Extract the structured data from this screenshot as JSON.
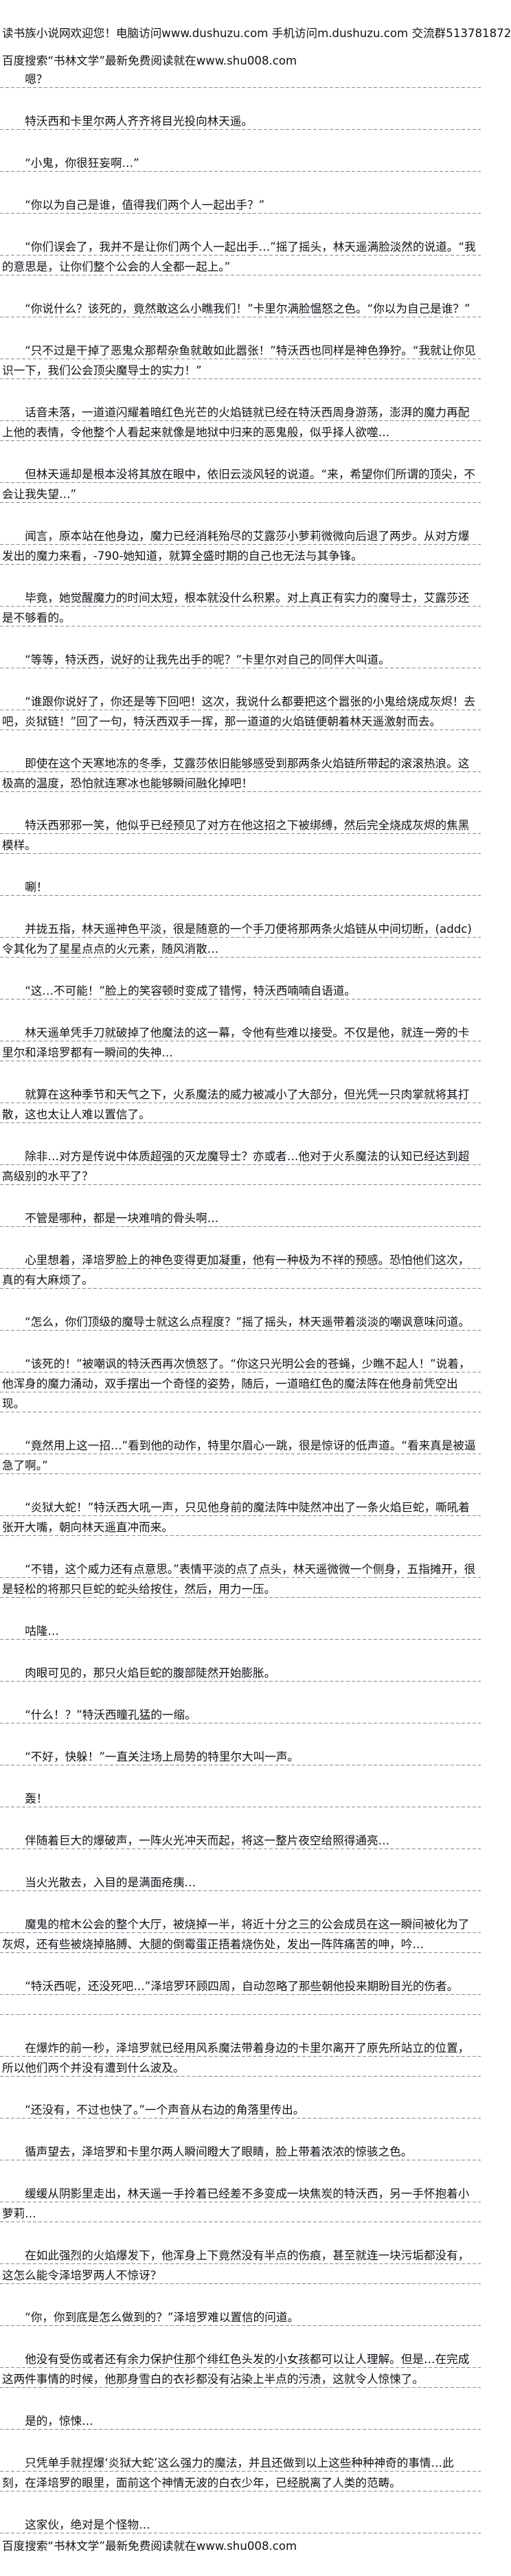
{
  "header": {
    "welcome": "读书族小说网欢迎您！电脑访问www.dushuzu.com 手机访问m.dushuzu.com 交流群513781872",
    "search_promo": "百度搜索“书林文学”最新免费阅读就在www.shu008.com"
  },
  "paragraphs": [
    "嗯？",
    "特沃西和卡里尔两人齐齐将目光投向林天遥。",
    "“小鬼，你很狂妄啊…”",
    "“你以为自己是谁，值得我们两个人一起出手？”",
    "“你们误会了，我并不是让你们两个人一起出手…”摇了摇头，林天遥满脸淡然的说道。“我的意思是，让你们整个公会的人全都一起上。”",
    "“你说什么？该死的，竟然敢这么小瞧我们！”卡里尔满脸愠怒之色。“你以为自己是谁？”",
    "“只不过是干掉了恶鬼众那帮杂鱼就敢如此嚣张！”特沃西也同样是神色狰狞。“我就让你见识一下，我们公会顶尖魔导士的实力！”",
    "话音未落，一道道闪耀着暗红色光芒的火焰链就已经在特沃西周身游荡，澎湃的魔力再配上他的表情，令他整个人看起来就像是地狱中归来的恶鬼般，似乎择人欲噬…",
    "但林天遥却是根本没将其放在眼中，依旧云淡风轻的说道。“来，希望你们所谓的顶尖，不会让我失望…”",
    "闻言，原本站在他身边，魔力已经消耗殆尽的艾露莎小萝莉微微向后退了两步。从对方爆发出的魔力来看，-790-她知道，就算全盛时期的自己也无法与其争锋。",
    "毕竟，她觉醒魔力的时间太短，根本就没什么积累。对上真正有实力的魔导士，艾露莎还是不够看的。",
    "“等等，特沃西，说好的让我先出手的呢？”卡里尔对自己的同伴大叫道。",
    "“谁跟你说好了，你还是等下回吧！这次，我说什么都要把这个嚣张的小鬼给烧成灰烬！去吧，炎狱链！”回了一句，特沃西双手一挥，那一道道的火焰链便朝着林天遥激射而去。",
    "即使在这个天寒地冻的冬季，艾露莎依旧能够感受到那两条火焰链所带起的滚滚热浪。这极高的温度，恐怕就连寒冰也能够瞬间融化掉吧！",
    "特沃西邪邪一笑，他似乎已经预见了对方在他这招之下被绑缚，然后完全烧成灰烬的焦黑模样。",
    "唰！",
    "并拢五指，林天遥神色平淡，很是随意的一个手刀便将那两条火焰链从中间切断，(addc)令其化为了星星点点的火元素，随风消散…",
    "“这…不可能！”脸上的笑容顿时变成了错愕，特沃西喃喃自语道。",
    "林天遥单凭手刀就破掉了他魔法的这一幕，令他有些难以接受。不仅是他，就连一旁的卡里尔和泽培罗都有一瞬间的失神…",
    "就算在这种季节和天气之下，火系魔法的威力被减小了大部分，但光凭一只肉掌就将其打散，这也太让人难以置信了。",
    "除非…对方是传说中体质超强的灭龙魔导士？亦或者…他对于火系魔法的认知已经达到超高级别的水平了？",
    "不管是哪种，都是一块难啃的骨头啊…",
    "心里想着，泽培罗脸上的神色变得更加凝重，他有一种极为不祥的预感。恐怕他们这次，真的有大麻烦了。",
    "“怎么，你们顶级的魔导士就这么点程度？”摇了摇头，林天遥带着淡淡的嘲讽意味问道。",
    "“该死的！”被嘲讽的特沃西再次愤怒了。“你这只光明公会的苍蝇，少瞧不起人！”说着，他浑身的魔力涌动，双手摆出一个奇怪的姿势，随后，一道暗红色的魔法阵在他身前凭空出现。",
    "“竟然用上这一招…”看到他的动作，特里尔眉心一跳，很是惊讶的低声道。“看来真是被逼急了啊。”",
    "“炎狱大蛇！”特沃西大吼一声，只见他身前的魔法阵中陡然冲出了一条火焰巨蛇，嘶吼着张开大嘴，朝向林天遥直冲而来。",
    "“不错，这个威力还有点意思。”表情平淡的点了点头，林天遥微微一个侧身，五指摊开，很是轻松的将那只巨蛇的蛇头给按住，然后，用力一压。",
    "咕隆…",
    "肉眼可见的，那只火焰巨蛇的腹部陡然开始膨胀。",
    "“什么！？”特沃西瞳孔猛的一缩。",
    "“不好，快躲！”一直关注场上局势的特里尔大叫一声。",
    "轰！",
    "伴随着巨大的爆破声，一阵火光冲天而起，将这一整片夜空给照得通亮…",
    "当火光散去，入目的是满面疮痍…",
    "魔鬼的棺木公会的整个大厅，被烧掉一半，将近十分之三的公会成员在这一瞬间被化为了灰烬，还有些被烧掉胳膊、大腿的倒霉蛋正捂着烧伤处，发出一阵阵痛苦的呻，吟…",
    "“特沃西呢，还没死吧…”泽培罗环顾四周，自动忽略了那些朝他投来期盼目光的伤者。",
    "在爆炸的前一秒，泽培罗就已经用风系魔法带着身边的卡里尔离开了原先所站立的位置，所以他们两个并没有遭到什么波及。",
    "“还没有，不过也快了。”一个声音从右边的角落里传出。",
    "循声望去，泽培罗和卡里尔两人瞬间瞪大了眼睛，脸上带着浓浓的惊骇之色。",
    "缓缓从阴影里走出，林天遥一手拎着已经差不多变成一块焦炭的特沃西，另一手怀抱着小萝莉…",
    "在如此强烈的火焰爆发下，他浑身上下竟然没有半点的伤痕，甚至就连一块污垢都没有，这怎么能令泽培罗两人不惊讶？",
    "“你，你到底是怎么做到的？”泽培罗难以置信的问道。",
    "他没有受伤或者还有余力保护住那个绯红色头发的小女孩都可以让人理解。但是…在完成这两件事情的时候，他那身雪白的衣衫都没有沾染上半点的污渍，这就令人惊悚了。",
    "是的，惊悚…",
    "只凭单手就捏爆‘炎狱大蛇’这么强力的魔法，并且还做到以上这些种种神奇的事情…此刻，在泽培罗的眼里，面前这个神情无波的白衣少年，已经脱离了人类的范畴。",
    "这家伙，绝对是个怪物…"
  ],
  "footer": {
    "search_promo": "百度搜索“书林文学”最新免费阅读就在www.shu008.com"
  }
}
